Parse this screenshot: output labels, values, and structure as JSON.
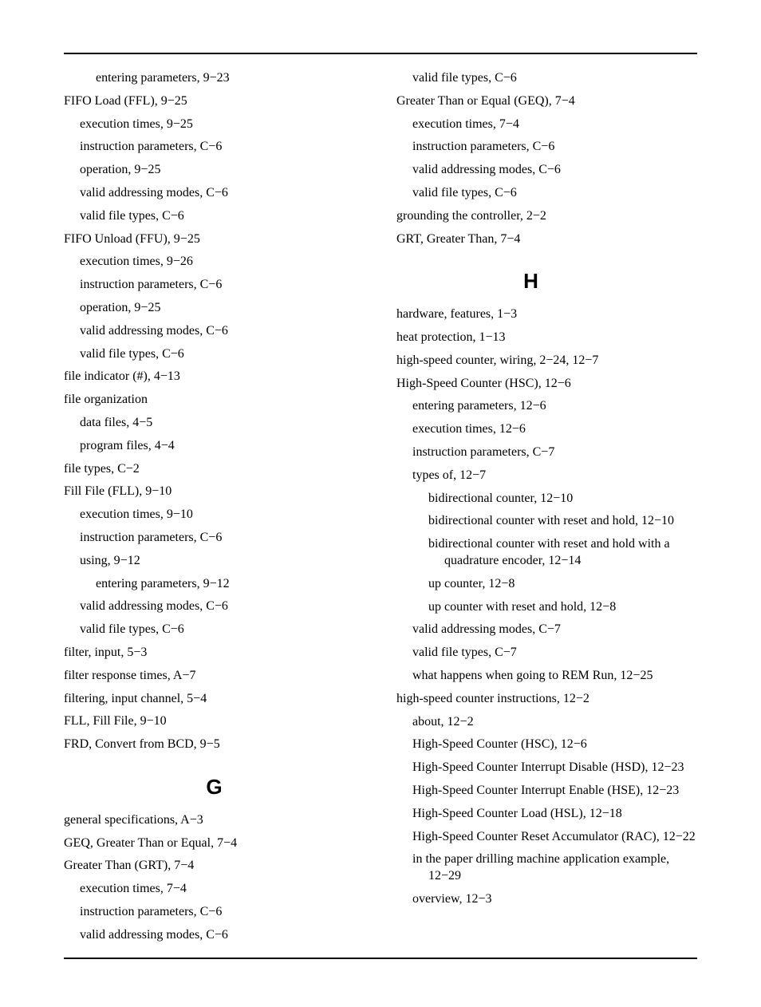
{
  "page": {
    "font_family": "Times New Roman",
    "font_size": 16,
    "background_color": "#ffffff",
    "text_color": "#000000"
  },
  "left_column": {
    "groups": [
      {
        "lines": [
          {
            "level": 2,
            "text": "entering parameters, 9−23"
          }
        ]
      },
      {
        "lines": [
          {
            "level": 0,
            "text": "FIFO Load (FFL), 9−25"
          },
          {
            "level": 1,
            "text": "execution times, 9−25"
          },
          {
            "level": 1,
            "text": "instruction parameters, C−6"
          },
          {
            "level": 1,
            "text": "operation, 9−25"
          },
          {
            "level": 1,
            "text": "valid addressing modes, C−6"
          },
          {
            "level": 1,
            "text": "valid file types, C−6"
          }
        ]
      },
      {
        "lines": [
          {
            "level": 0,
            "text": "FIFO Unload (FFU), 9−25"
          },
          {
            "level": 1,
            "text": "execution times, 9−26"
          },
          {
            "level": 1,
            "text": "instruction parameters, C−6"
          },
          {
            "level": 1,
            "text": "operation, 9−25"
          },
          {
            "level": 1,
            "text": "valid addressing modes, C−6"
          },
          {
            "level": 1,
            "text": "valid file types, C−6"
          }
        ]
      },
      {
        "lines": [
          {
            "level": 0,
            "text": "file indicator (#), 4−13"
          }
        ]
      },
      {
        "lines": [
          {
            "level": 0,
            "text": "file organization"
          },
          {
            "level": 1,
            "text": "data files, 4−5"
          },
          {
            "level": 1,
            "text": "program files, 4−4"
          }
        ]
      },
      {
        "lines": [
          {
            "level": 0,
            "text": "file types, C−2"
          }
        ]
      },
      {
        "lines": [
          {
            "level": 0,
            "text": "Fill File (FLL), 9−10"
          },
          {
            "level": 1,
            "text": "execution times, 9−10"
          },
          {
            "level": 1,
            "text": "instruction parameters, C−6"
          },
          {
            "level": 1,
            "text": "using, 9−12"
          },
          {
            "level": 2,
            "text": "entering parameters, 9−12"
          },
          {
            "level": 1,
            "text": "valid addressing modes, C−6"
          },
          {
            "level": 1,
            "text": "valid file types, C−6"
          }
        ]
      },
      {
        "lines": [
          {
            "level": 0,
            "text": "filter, input, 5−3"
          }
        ]
      },
      {
        "lines": [
          {
            "level": 0,
            "text": "filter response times, A−7"
          }
        ]
      },
      {
        "lines": [
          {
            "level": 0,
            "text": "filtering, input channel, 5−4"
          }
        ]
      },
      {
        "lines": [
          {
            "level": 0,
            "text": "FLL, Fill File, 9−10"
          }
        ]
      },
      {
        "lines": [
          {
            "level": 0,
            "text": "FRD, Convert from BCD, 9−5"
          }
        ]
      }
    ],
    "section_g": {
      "letter": "G"
    },
    "groups_g": [
      {
        "lines": [
          {
            "level": 0,
            "text": "general specifications, A−3"
          }
        ]
      },
      {
        "lines": [
          {
            "level": 0,
            "text": "GEQ, Greater Than or Equal, 7−4"
          }
        ]
      },
      {
        "lines": [
          {
            "level": 0,
            "text": "Greater Than (GRT), 7−4"
          },
          {
            "level": 1,
            "text": "execution times, 7−4"
          },
          {
            "level": 1,
            "text": "instruction parameters, C−6"
          },
          {
            "level": 1,
            "text": "valid addressing modes, C−6"
          }
        ]
      }
    ]
  },
  "right_column": {
    "groups_pre": [
      {
        "lines": [
          {
            "level": 1,
            "text": "valid file types, C−6"
          }
        ]
      },
      {
        "lines": [
          {
            "level": 0,
            "text": "Greater Than or Equal (GEQ), 7−4"
          },
          {
            "level": 1,
            "text": "execution times, 7−4"
          },
          {
            "level": 1,
            "text": "instruction parameters, C−6"
          },
          {
            "level": 1,
            "text": "valid addressing modes, C−6"
          },
          {
            "level": 1,
            "text": "valid file types, C−6"
          }
        ]
      },
      {
        "lines": [
          {
            "level": 0,
            "text": "grounding the controller, 2−2"
          }
        ]
      },
      {
        "lines": [
          {
            "level": 0,
            "text": "GRT, Greater Than, 7−4"
          }
        ]
      }
    ],
    "section_h": {
      "letter": "H"
    },
    "groups_h": [
      {
        "lines": [
          {
            "level": 0,
            "text": "hardware, features, 1−3"
          }
        ]
      },
      {
        "lines": [
          {
            "level": 0,
            "text": "heat protection, 1−13"
          }
        ]
      },
      {
        "lines": [
          {
            "level": 0,
            "text": "high-speed counter, wiring, 2−24, 12−7"
          }
        ]
      },
      {
        "lines": [
          {
            "level": 0,
            "text": "High-Speed Counter (HSC), 12−6"
          },
          {
            "level": 1,
            "text": "entering parameters, 12−6"
          },
          {
            "level": 1,
            "text": "execution times, 12−6"
          },
          {
            "level": 1,
            "text": "instruction parameters, C−7"
          },
          {
            "level": 1,
            "text": "types of, 12−7"
          },
          {
            "level": 2,
            "text": "bidirectional counter, 12−10"
          },
          {
            "level": 2,
            "text": "bidirectional counter with reset and hold, 12−10"
          },
          {
            "level": 2,
            "text": "bidirectional counter with reset and hold with a quadrature encoder, 12−14"
          },
          {
            "level": 2,
            "text": "up counter, 12−8"
          },
          {
            "level": 2,
            "text": "up counter with reset and hold, 12−8"
          },
          {
            "level": 1,
            "text": "valid addressing modes, C−7"
          },
          {
            "level": 1,
            "text": "valid file types, C−7"
          },
          {
            "level": 1,
            "text": "what happens when going to REM Run, 12−25"
          }
        ]
      },
      {
        "lines": [
          {
            "level": 0,
            "text": "high-speed counter instructions, 12−2"
          },
          {
            "level": 1,
            "text": "about, 12−2"
          },
          {
            "level": 1,
            "text": "High-Speed Counter (HSC), 12−6"
          },
          {
            "level": 1,
            "text": "High-Speed Counter Interrupt Disable (HSD), 12−23"
          },
          {
            "level": 1,
            "text": "High-Speed Counter Interrupt Enable (HSE), 12−23"
          },
          {
            "level": 1,
            "text": "High-Speed Counter Load (HSL), 12−18"
          },
          {
            "level": 1,
            "text": "High-Speed Counter Reset Accumulator (RAC), 12−22"
          },
          {
            "level": 1,
            "text": "in the paper drilling machine application example, 12−29"
          },
          {
            "level": 1,
            "text": "overview, 12−3"
          }
        ]
      }
    ]
  }
}
